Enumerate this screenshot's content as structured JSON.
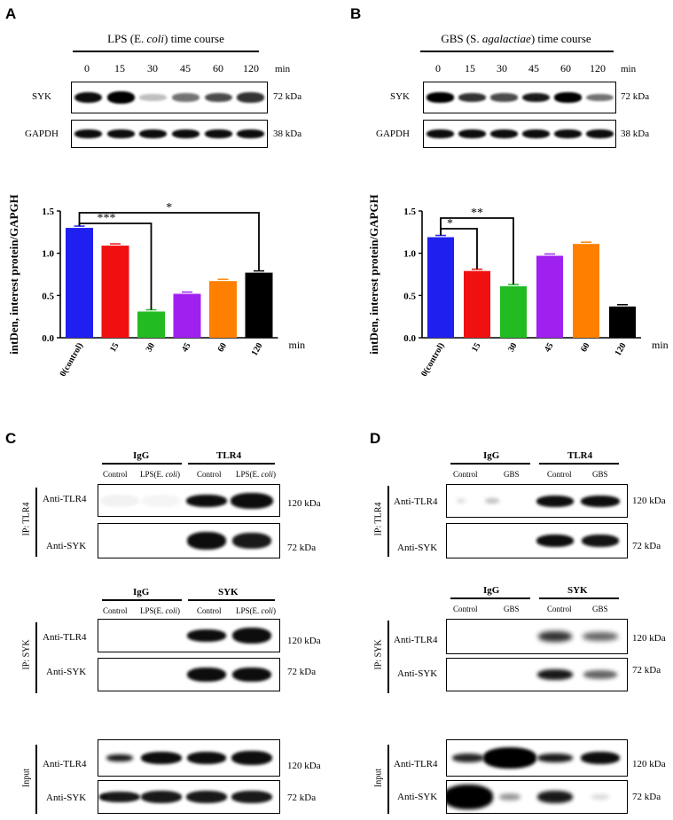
{
  "panel_labels": {
    "A": "A",
    "B": "B",
    "C": "C",
    "D": "D"
  },
  "panelA": {
    "title_pre": "LPS (E. ",
    "title_it": "coli",
    "title_post": ") time course",
    "times": [
      "0",
      "15",
      "30",
      "45",
      "60",
      "120"
    ],
    "unit": "min",
    "row1_label": "SYK",
    "row1_kda": "72 kDa",
    "row2_label": "GAPDH",
    "row2_kda": "38 kDa",
    "syk_levels": [
      0.85,
      1.0,
      0.15,
      0.45,
      0.6,
      0.7
    ],
    "gapdh_levels": [
      0.85,
      0.85,
      0.85,
      0.85,
      0.85,
      0.85
    ]
  },
  "panelB": {
    "title_pre": "GBS (S. ",
    "title_it": "agalactiae",
    "title_post": ") time course",
    "times": [
      "0",
      "15",
      "30",
      "45",
      "60",
      "120"
    ],
    "unit": "min",
    "row1_label": "SYK",
    "row1_kda": "72 kDa",
    "row2_label": "GAPDH",
    "row2_kda": "38 kDa",
    "syk_levels": [
      0.9,
      0.7,
      0.6,
      0.8,
      0.9,
      0.45
    ],
    "gapdh_levels": [
      0.85,
      0.85,
      0.85,
      0.85,
      0.85,
      0.85
    ]
  },
  "chart_data": [
    {
      "type": "bar",
      "categories": [
        "0(control)",
        "15",
        "30",
        "45",
        "60",
        "120"
      ],
      "values": [
        1.3,
        1.09,
        0.31,
        0.52,
        0.67,
        0.77
      ],
      "colors": [
        "#1f1ff0",
        "#f01010",
        "#22bb22",
        "#a020f0",
        "#ff8000",
        "#000000"
      ],
      "ylabel": "intDen, interest protein/GAPGH",
      "xlabel": "min",
      "yticks": [
        "0.0",
        "0.5",
        "1.0",
        "1.5"
      ],
      "ylim": [
        0,
        1.5
      ],
      "annotations": [
        {
          "from": "0(control)",
          "to": "30",
          "label": "***"
        },
        {
          "from": "0(control)",
          "to": "120",
          "label": "*"
        }
      ]
    },
    {
      "type": "bar",
      "categories": [
        "0(control)",
        "15",
        "30",
        "45",
        "60",
        "120"
      ],
      "values": [
        1.19,
        0.79,
        0.61,
        0.97,
        1.11,
        0.37
      ],
      "colors": [
        "#1f1ff0",
        "#f01010",
        "#22bb22",
        "#a020f0",
        "#ff8000",
        "#000000"
      ],
      "ylabel": "intDen, interest protein/GAPGH",
      "xlabel": "min",
      "yticks": [
        "0.0",
        "0.5",
        "1.0",
        "1.5"
      ],
      "ylim": [
        0,
        1.5
      ],
      "annotations": [
        {
          "from": "0(control)",
          "to": "15",
          "label": "*"
        },
        {
          "from": "0(control)",
          "to": "30",
          "label": "**"
        }
      ]
    }
  ],
  "panelC": {
    "ip_tlr4": {
      "ip": "IP: TLR4",
      "g1": "IgG",
      "g2": "TLR4",
      "l1": "Control",
      "l2_pre": "LPS(E. ",
      "l2_it": "coli",
      "l2_post": ")",
      "row1": "Anti-TLR4",
      "row1_kda": "120 kDa",
      "row2": "Anti-SYK",
      "row2_kda": "72 kDa"
    },
    "ip_syk": {
      "ip": "IP: SYK",
      "g1": "IgG",
      "g2": "SYK",
      "l1": "Control",
      "l2_pre": "LPS(E. ",
      "l2_it": "coli",
      "l2_post": ")",
      "row1": "Anti-TLR4",
      "row1_kda": "120 kDa",
      "row2": "Anti-SYK",
      "row2_kda": "72 kDa"
    },
    "input": {
      "ip": "Input",
      "row1": "Anti-TLR4",
      "row1_kda": "120 kDa",
      "row2": "Anti-SYK",
      "row2_kda": "72 kDa"
    }
  },
  "panelD": {
    "ip_tlr4": {
      "ip": "IP: TLR4",
      "g1": "IgG",
      "g2": "TLR4",
      "l1": "Control",
      "l2": "GBS",
      "row1": "Anti-TLR4",
      "row1_kda": "120 kDa",
      "row2": "Anti-SYK",
      "row2_kda": "72 kDa"
    },
    "ip_syk": {
      "ip": "IP: SYK",
      "g1": "IgG",
      "g2": "SYK",
      "l1": "Control",
      "l2": "GBS",
      "row1": "Anti-TLR4",
      "row1_kda": "120 kDa",
      "row2": "Anti-SYK",
      "row2_kda": "72 kDa"
    },
    "input": {
      "ip": "Input",
      "row1": "Anti-TLR4",
      "row1_kda": "120 kDa",
      "row2": "Anti-SYK",
      "row2_kda": "72 kDa"
    }
  }
}
